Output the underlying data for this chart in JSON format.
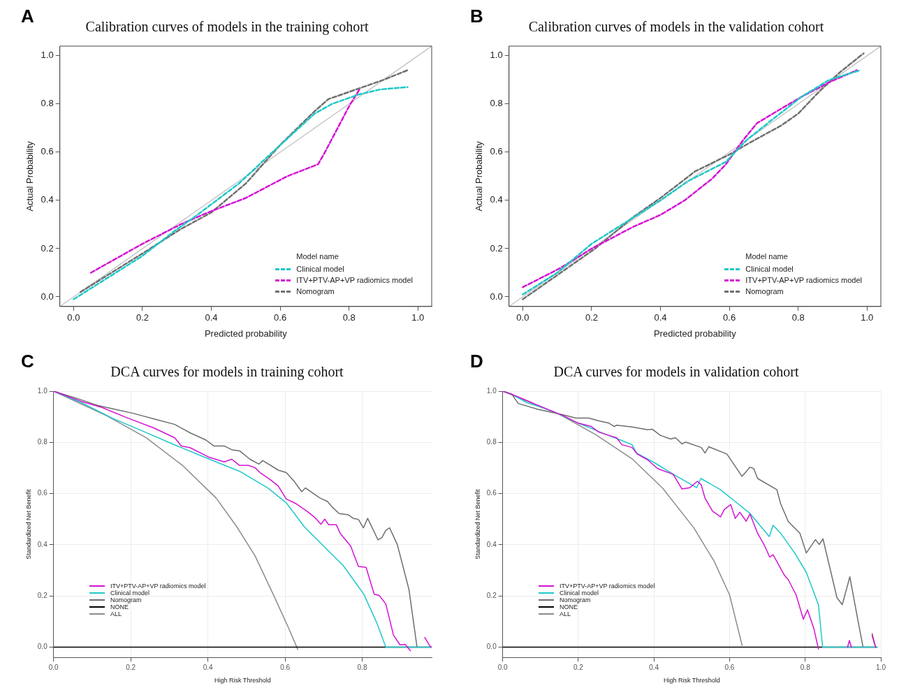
{
  "chart_data": [
    {
      "type": "line",
      "title": "Calibration curves of models in the training cohort",
      "xlabel": "Predicted probability",
      "ylabel": "Actual Probability",
      "legend_title": "Model name",
      "legend": "bottom right",
      "grid": false,
      "annotations": [
        "A"
      ],
      "xlim": [
        -0.04,
        1.04
      ],
      "ylim": [
        -0.04,
        1.04
      ],
      "xticks": [
        {
          "value": 0,
          "label": "0.0"
        },
        {
          "value": 0.2,
          "label": "0.2"
        },
        {
          "value": 0.4,
          "label": "0.4"
        },
        {
          "value": 0.6,
          "label": "0.6"
        },
        {
          "value": 0.8,
          "label": "0.8"
        },
        {
          "value": 1,
          "label": "1.0"
        }
      ],
      "yticks": [
        {
          "value": 0,
          "label": "0.0"
        },
        {
          "value": 0.2,
          "label": "0.2"
        },
        {
          "value": 0.4,
          "label": "0.4"
        },
        {
          "value": 0.6,
          "label": "0.6"
        },
        {
          "value": 0.8,
          "label": "0.8"
        },
        {
          "value": 1,
          "label": "1.0"
        }
      ],
      "series": [
        {
          "name": "Clinical model",
          "color": "#1ec8c8",
          "line_style": "dashed",
          "x": [
            0,
            0.2,
            0.29,
            0.35,
            0.48,
            0.57,
            0.7,
            0.75,
            0.83,
            0.89,
            0.97
          ],
          "values": [
            -0.01,
            0.17,
            0.27,
            0.33,
            0.47,
            0.59,
            0.76,
            0.8,
            0.84,
            0.86,
            0.87
          ]
        },
        {
          "name": "ITV+PTV-AP+VP radiomics model",
          "color": "#d412d4",
          "line_style": "dashed",
          "x": [
            0.05,
            0.2,
            0.31,
            0.39,
            0.5,
            0.62,
            0.71,
            0.73,
            0.8,
            0.83
          ],
          "values": [
            0.1,
            0.22,
            0.3,
            0.35,
            0.41,
            0.5,
            0.55,
            0.6,
            0.79,
            0.86
          ]
        },
        {
          "name": "Nomogram",
          "color": "#707070",
          "line_style": "dashed",
          "x": [
            0.02,
            0.2,
            0.31,
            0.4,
            0.5,
            0.6,
            0.7,
            0.74,
            0.84,
            0.9,
            0.97
          ],
          "values": [
            0.02,
            0.18,
            0.28,
            0.35,
            0.47,
            0.63,
            0.77,
            0.82,
            0.87,
            0.9,
            0.94
          ]
        },
        {
          "color": "#c8c8c8",
          "line_style": "solid",
          "x": [
            -0.04,
            1.04
          ],
          "values": [
            -0.04,
            1.04
          ]
        }
      ]
    },
    {
      "type": "line",
      "title": "Calibration curves of models in the validation cohort",
      "xlabel": "Predicted probability",
      "ylabel": "Actual Probability",
      "legend_title": "Model name",
      "legend": "bottom right",
      "grid": false,
      "annotations": [
        "B"
      ],
      "xlim": [
        -0.04,
        1.04
      ],
      "ylim": [
        -0.04,
        1.04
      ],
      "xticks": [
        {
          "value": 0,
          "label": "0.0"
        },
        {
          "value": 0.2,
          "label": "0.2"
        },
        {
          "value": 0.4,
          "label": "0.4"
        },
        {
          "value": 0.6,
          "label": "0.6"
        },
        {
          "value": 0.8,
          "label": "0.8"
        },
        {
          "value": 1,
          "label": "1.0"
        }
      ],
      "yticks": [
        {
          "value": 0,
          "label": "0.0"
        },
        {
          "value": 0.2,
          "label": "0.2"
        },
        {
          "value": 0.4,
          "label": "0.4"
        },
        {
          "value": 0.6,
          "label": "0.6"
        },
        {
          "value": 0.8,
          "label": "0.8"
        },
        {
          "value": 1,
          "label": "1.0"
        }
      ],
      "series": [
        {
          "name": "Clinical model",
          "color": "#1ec8c8",
          "line_style": "dashed",
          "x": [
            0,
            0.1,
            0.2,
            0.3,
            0.4,
            0.48,
            0.59,
            0.65,
            0.72,
            0.81,
            0.89,
            0.98
          ],
          "values": [
            0.01,
            0.1,
            0.22,
            0.31,
            0.4,
            0.48,
            0.56,
            0.65,
            0.73,
            0.83,
            0.9,
            0.94
          ]
        },
        {
          "name": "ITV+PTV-AP+VP radiomics model",
          "color": "#d412d4",
          "line_style": "dashed",
          "x": [
            0,
            0.11,
            0.2,
            0.32,
            0.4,
            0.47,
            0.55,
            0.59,
            0.64,
            0.68,
            0.75,
            0.81,
            0.89,
            0.97
          ],
          "values": [
            0.04,
            0.12,
            0.2,
            0.29,
            0.34,
            0.4,
            0.49,
            0.55,
            0.65,
            0.72,
            0.78,
            0.83,
            0.89,
            0.94
          ]
        },
        {
          "name": "Nomogram",
          "color": "#707070",
          "line_style": "dashed",
          "x": [
            0,
            0.11,
            0.21,
            0.32,
            0.4,
            0.5,
            0.6,
            0.66,
            0.75,
            0.8,
            0.86,
            0.92,
            0.99
          ],
          "values": [
            -0.01,
            0.1,
            0.2,
            0.33,
            0.41,
            0.52,
            0.59,
            0.64,
            0.71,
            0.76,
            0.85,
            0.93,
            1.01
          ]
        },
        {
          "color": "#c8c8c8",
          "line_style": "solid",
          "x": [
            -0.04,
            1.04
          ],
          "values": [
            -0.04,
            1.04
          ]
        }
      ]
    },
    {
      "type": "line",
      "title": "DCA curves for models in training cohort",
      "xlabel": "High Risk Threshold",
      "ylabel": "Standardized Net Benefit",
      "legend": "bottom left",
      "grid": true,
      "annotations": [
        "C"
      ],
      "xlim": [
        0,
        0.98
      ],
      "ylim": [
        -0.04,
        1.0
      ],
      "xticks": [
        {
          "value": 0,
          "label": "0.0"
        },
        {
          "value": 0.2,
          "label": "0.2"
        },
        {
          "value": 0.4,
          "label": "0.4"
        },
        {
          "value": 0.6,
          "label": "0.6"
        },
        {
          "value": 0.8,
          "label": "0.8"
        }
      ],
      "yticks": [
        {
          "value": 0,
          "label": "0.0"
        },
        {
          "value": 0.2,
          "label": "0.2"
        },
        {
          "value": 0.4,
          "label": "0.4"
        },
        {
          "value": 0.6,
          "label": "0.6"
        },
        {
          "value": 0.8,
          "label": "0.8"
        },
        {
          "value": 1,
          "label": "1.0"
        }
      ],
      "series": [
        {
          "name": "ITV+PTV-AP+VP radiomics model",
          "color": "#d412d4",
          "x": [
            0,
            0.072,
            0.126,
            0.187,
            0.26,
            0.314,
            0.331,
            0.354,
            0.401,
            0.442,
            0.462,
            0.482,
            0.505,
            0.522,
            0.535,
            0.562,
            0.582,
            0.603,
            0.629,
            0.656,
            0.676,
            0.693,
            0.703,
            0.713,
            0.733,
            0.743,
            0.77,
            0.79,
            0.81,
            0.831,
            0.844,
            0.861,
            0.881,
            0.898,
            0.911,
            0.925,
            0.93,
            0.955,
            0.962,
            0.975,
            0.98
          ],
          "values": [
            1,
            0.96,
            0.936,
            0.898,
            0.856,
            0.818,
            0.786,
            0.779,
            0.743,
            0.724,
            0.734,
            0.71,
            0.71,
            0.701,
            0.682,
            0.654,
            0.63,
            0.579,
            0.56,
            0.532,
            0.508,
            0.48,
            0.5,
            0.478,
            0.478,
            0.444,
            0.395,
            0.315,
            0.312,
            0.207,
            0.202,
            0.169,
            0.047,
            0.009,
            0.011,
            -0.014,
            null,
            null,
            0.038,
            0.005,
            0
          ]
        },
        {
          "name": "Clinical model",
          "color": "#1ec8c8",
          "x": [
            0,
            0.072,
            0.153,
            0.234,
            0.314,
            0.401,
            0.482,
            0.556,
            0.603,
            0.65,
            0.703,
            0.75,
            0.804,
            0.838,
            0.861,
            0.98
          ],
          "values": [
            1,
            0.955,
            0.894,
            0.842,
            0.79,
            0.736,
            0.687,
            0.621,
            0.564,
            0.47,
            0.39,
            0.32,
            0.207,
            0.094,
            0,
            0
          ]
        },
        {
          "name": "Nomogram",
          "color": "#6e6e6e",
          "x": [
            0,
            0.066,
            0.113,
            0.153,
            0.207,
            0.267,
            0.314,
            0.354,
            0.395,
            0.415,
            0.442,
            0.462,
            0.482,
            0.509,
            0.532,
            0.542,
            0.583,
            0.603,
            0.623,
            0.643,
            0.653,
            0.69,
            0.71,
            0.723,
            0.74,
            0.764,
            0.777,
            0.79,
            0.803,
            0.814,
            0.841,
            0.851,
            0.861,
            0.871,
            0.891,
            0.921,
            0.942
          ],
          "values": [
            1,
            0.969,
            0.945,
            0.931,
            0.913,
            0.889,
            0.87,
            0.837,
            0.809,
            0.786,
            0.786,
            0.771,
            0.767,
            0.734,
            0.715,
            0.729,
            0.691,
            0.682,
            0.649,
            0.607,
            0.622,
            0.583,
            0.569,
            0.546,
            0.522,
            0.517,
            0.503,
            0.499,
            0.466,
            0.503,
            0.419,
            0.428,
            0.456,
            0.466,
            0.4,
            0.226,
            0
          ]
        },
        {
          "name": "NONE",
          "color": "#000000",
          "x": [
            0,
            0.98
          ],
          "values": [
            0,
            0
          ]
        },
        {
          "name": "ALL",
          "color": "#8c8c8c",
          "x": [
            0,
            0.139,
            0.24,
            0.334,
            0.421,
            0.475,
            0.522,
            0.569,
            0.609,
            0.633
          ],
          "values": [
            1,
            0.903,
            0.818,
            0.71,
            0.583,
            0.47,
            0.357,
            0.207,
            0.075,
            -0.009
          ]
        }
      ]
    },
    {
      "type": "line",
      "title": "DCA curves for models in validation cohort",
      "xlabel": "High Risk Threshold",
      "ylabel": "Standardized Net Benefit",
      "legend": "bottom left",
      "grid": true,
      "annotations": [
        "D"
      ],
      "xlim": [
        0,
        1.0
      ],
      "ylim": [
        -0.04,
        1.0
      ],
      "xticks": [
        {
          "value": 0,
          "label": "0.0"
        },
        {
          "value": 0.2,
          "label": "0.2"
        },
        {
          "value": 0.4,
          "label": "0.4"
        },
        {
          "value": 0.6,
          "label": "0.6"
        },
        {
          "value": 0.8,
          "label": "0.8"
        },
        {
          "value": 1,
          "label": "1.0"
        }
      ],
      "yticks": [
        {
          "value": 0,
          "label": "0.0"
        },
        {
          "value": 0.2,
          "label": "0.2"
        },
        {
          "value": 0.4,
          "label": "0.4"
        },
        {
          "value": 0.6,
          "label": "0.6"
        },
        {
          "value": 0.8,
          "label": "0.8"
        },
        {
          "value": 1,
          "label": "1.0"
        }
      ],
      "series": [
        {
          "name": "ITV+PTV-AP+VP radiomics model",
          "color": "#d412d4",
          "x": [
            0,
            0.024,
            0.085,
            0.166,
            0.2,
            0.234,
            0.254,
            0.281,
            0.301,
            0.315,
            0.342,
            0.356,
            0.383,
            0.41,
            0.451,
            0.474,
            0.495,
            0.515,
            0.525,
            0.535,
            0.555,
            0.576,
            0.586,
            0.603,
            0.615,
            0.627,
            0.644,
            0.654,
            0.674,
            0.691,
            0.706,
            0.715,
            0.745,
            0.755,
            0.776,
            0.795,
            0.806,
            0.823,
            0.835,
            0.845,
            0.912,
            0.917,
            0.922,
            0.97,
            0.977,
            0.986
          ],
          "values": [
            1,
            0.988,
            0.95,
            0.9,
            0.875,
            0.862,
            0.84,
            0.827,
            0.818,
            0.791,
            0.78,
            0.754,
            0.732,
            0.697,
            0.675,
            0.618,
            0.623,
            0.648,
            0.634,
            0.582,
            0.531,
            0.509,
            0.538,
            0.557,
            0.503,
            0.527,
            0.492,
            0.52,
            0.445,
            0.401,
            0.352,
            0.361,
            0.281,
            0.264,
            0.204,
            0.109,
            0.146,
            0.072,
            -0.007,
            null,
            0,
            0.026,
            0,
            null,
            0.045,
            0
          ]
        },
        {
          "name": "Clinical model",
          "color": "#1ec8c8",
          "x": [
            0,
            0.024,
            0.064,
            0.132,
            0.2,
            0.268,
            0.315,
            0.342,
            0.354,
            0.403,
            0.457,
            0.513,
            0.524,
            0.576,
            0.613,
            0.654,
            0.705,
            0.715,
            0.735,
            0.772,
            0.803,
            0.835,
            0.846,
            0.99
          ],
          "values": [
            1,
            0.988,
            0.955,
            0.922,
            0.875,
            0.834,
            0.807,
            0.791,
            0.758,
            0.719,
            0.67,
            0.623,
            0.659,
            0.615,
            0.571,
            0.522,
            0.432,
            0.476,
            0.445,
            0.368,
            0.292,
            0.166,
            0,
            0
          ]
        },
        {
          "name": "Nomogram",
          "color": "#6e6e6e",
          "x": [
            0,
            0.024,
            0.041,
            0.091,
            0.125,
            0.159,
            0.193,
            0.227,
            0.254,
            0.281,
            0.295,
            0.301,
            0.342,
            0.383,
            0.396,
            0.417,
            0.444,
            0.457,
            0.474,
            0.484,
            0.525,
            0.535,
            0.545,
            0.593,
            0.633,
            0.654,
            0.664,
            0.674,
            0.725,
            0.735,
            0.755,
            0.786,
            0.803,
            0.827,
            0.837,
            0.847,
            0.884,
            0.898,
            0.918,
            0.938,
            0.953,
            0.96,
            0.968,
            0.977,
            0.986
          ],
          "values": [
            1,
            0.988,
            0.952,
            0.93,
            0.919,
            0.908,
            0.895,
            0.895,
            0.884,
            0.875,
            0.862,
            0.867,
            0.86,
            0.849,
            0.851,
            0.827,
            0.813,
            0.818,
            0.794,
            0.801,
            0.78,
            0.758,
            0.783,
            0.754,
            0.667,
            0.703,
            0.697,
            0.659,
            0.615,
            0.56,
            0.491,
            0.445,
            0.368,
            0.42,
            0.401,
            0.423,
            0.193,
            0.166,
            0.275,
            0.116,
            0,
            null,
            null,
            0.053,
            0
          ]
        },
        {
          "name": "NONE",
          "color": "#000000",
          "x": [
            0,
            0.99
          ],
          "values": [
            0,
            0
          ]
        },
        {
          "name": "ALL",
          "color": "#8c8c8c",
          "x": [
            0,
            0.152,
            0.247,
            0.342,
            0.423,
            0.505,
            0.559,
            0.6,
            0.633
          ],
          "values": [
            1,
            0.908,
            0.829,
            0.736,
            0.621,
            0.467,
            0.336,
            0.204,
            0.007
          ]
        }
      ]
    }
  ]
}
